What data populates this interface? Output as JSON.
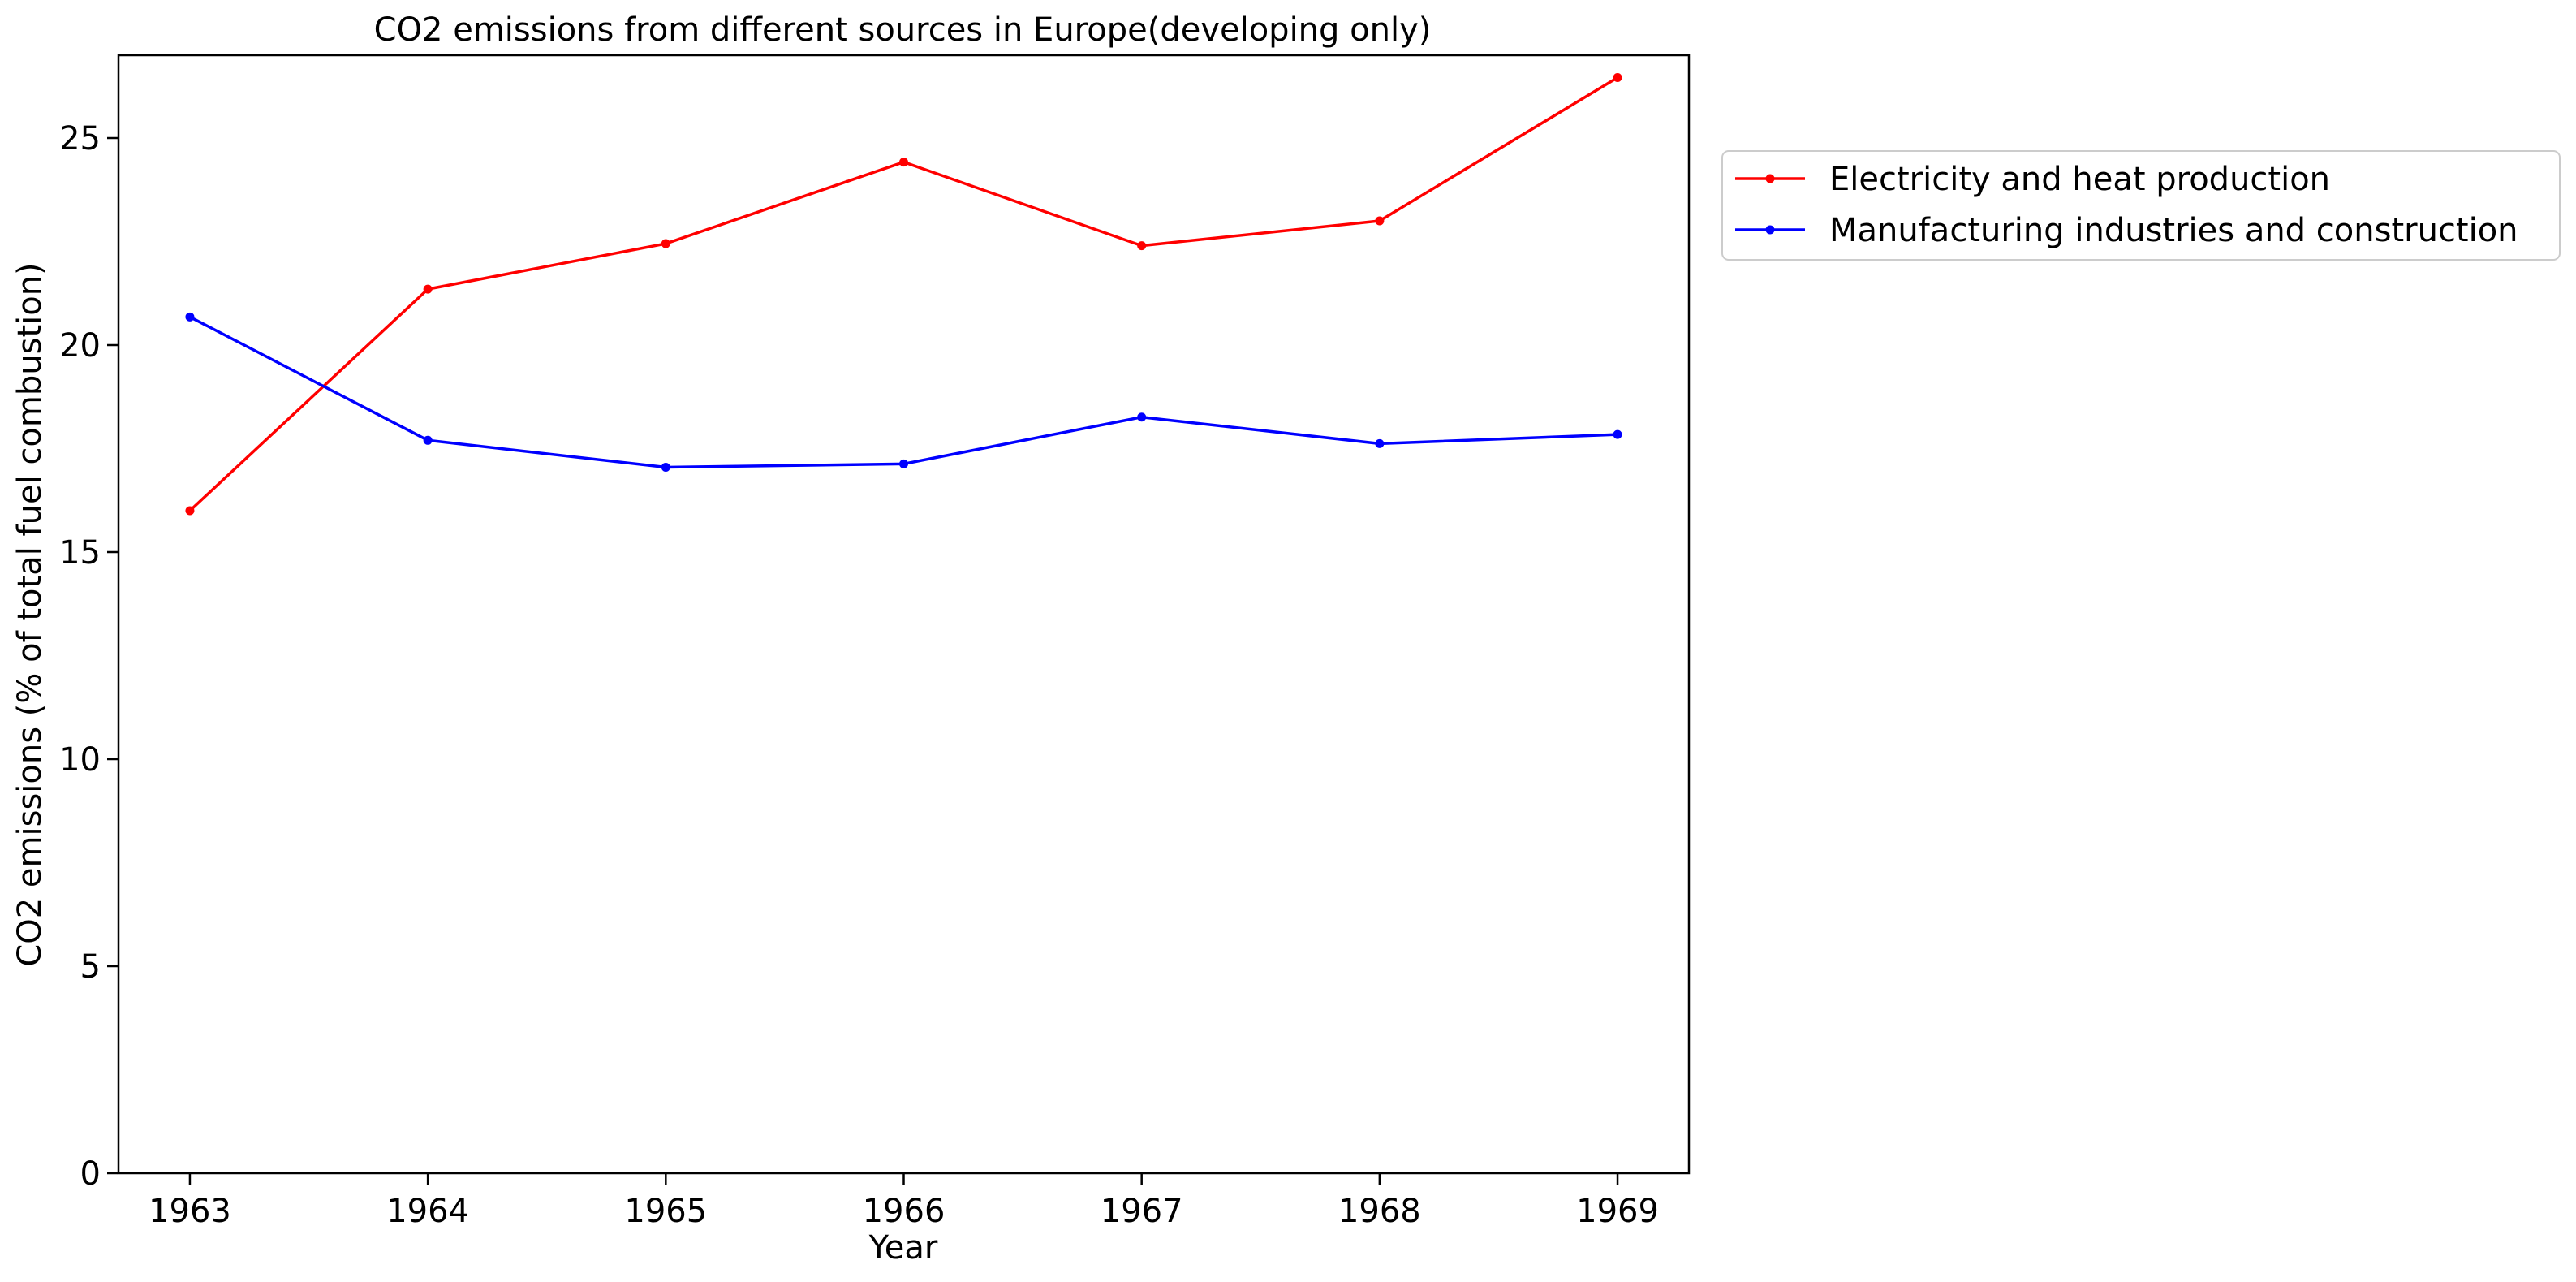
{
  "chart_data": {
    "type": "line",
    "title": "CO2 emissions from different sources in Europe(developing only)",
    "xlabel": "Year",
    "ylabel": "CO2 emissions (% of total fuel combustion)",
    "x": [
      "1963",
      "1964",
      "1965",
      "1966",
      "1967",
      "1968",
      "1969"
    ],
    "x_ticks": [
      "1963",
      "1964",
      "1965",
      "1966",
      "1967",
      "1968",
      "1969"
    ],
    "y_ticks": [
      "0",
      "5",
      "10",
      "15",
      "20",
      "25"
    ],
    "xlim": [
      1962.7,
      1969.3
    ],
    "ylim": [
      0,
      27
    ],
    "grid": false,
    "legend_position": "outside-right-top",
    "series": [
      {
        "name": "Electricity and heat production",
        "color": "#ff0000",
        "marker": "dot",
        "values": [
          16.0,
          21.35,
          22.45,
          24.42,
          22.4,
          23.0,
          26.46
        ]
      },
      {
        "name": "Manufacturing industries and construction",
        "color": "#0000ff",
        "marker": "dot",
        "values": [
          20.68,
          17.7,
          17.05,
          17.13,
          18.26,
          17.62,
          17.84
        ]
      }
    ]
  }
}
